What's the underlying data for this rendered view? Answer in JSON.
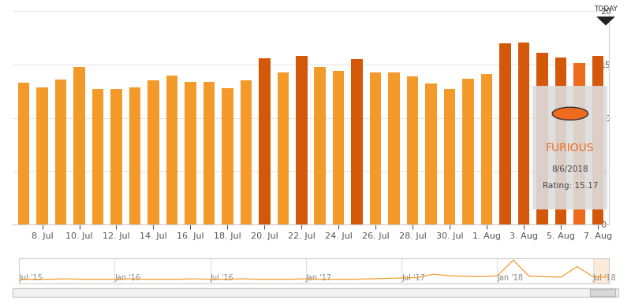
{
  "chart_data": [
    {
      "type": "bar",
      "categories": [
        null,
        "8. Jul",
        null,
        "10. Jul",
        null,
        "12. Jul",
        null,
        "14. Jul",
        null,
        "16. Jul",
        null,
        "18. Jul",
        null,
        "20. Jul",
        null,
        "22. Jul",
        null,
        "24. Jul",
        null,
        "26. Jul",
        null,
        "28. Jul",
        null,
        "30. Jul",
        null,
        "1. Aug",
        null,
        "3. Aug",
        null,
        "5. Aug",
        null,
        "7. Aug"
      ],
      "values": [
        13.3,
        12.9,
        13.6,
        14.8,
        12.75,
        12.75,
        12.9,
        13.5,
        14.0,
        13.4,
        13.4,
        12.8,
        13.5,
        15.6,
        14.25,
        15.8,
        14.8,
        14.4,
        15.5,
        14.25,
        14.25,
        13.9,
        13.25,
        12.7,
        13.7,
        14.1,
        17.0,
        17.1,
        16.1,
        15.7,
        15.17,
        15.8
      ],
      "colors": [
        "#f39a2a",
        "#f39a2a",
        "#f39a2a",
        "#f39a2a",
        "#f39a2a",
        "#f39a2a",
        "#f39a2a",
        "#f39a2a",
        "#f39a2a",
        "#f39a2a",
        "#f39a2a",
        "#f39a2a",
        "#f39a2a",
        "#d4580a",
        "#f39a2a",
        "#d4580a",
        "#f39a2a",
        "#f39a2a",
        "#d4580a",
        "#f39a2a",
        "#f39a2a",
        "#f39a2a",
        "#f39a2a",
        "#f39a2a",
        "#f39a2a",
        "#f39a2a",
        "#d4580a",
        "#d4580a",
        "#d4580a",
        "#d4580a",
        "#ee6a1c",
        "#d4580a"
      ],
      "ylim": [
        0,
        20
      ],
      "yticks": [
        0,
        5,
        10,
        15,
        20
      ],
      "grid": true,
      "today_label": "TODAY",
      "tooltip": {
        "title": "FURIOUS",
        "date": "8/6/2018",
        "label": "Rating: 15.17"
      }
    },
    {
      "type": "line",
      "categories": [
        "Jul '15",
        null,
        null,
        null,
        null,
        null,
        "Jan '16",
        null,
        null,
        null,
        null,
        null,
        "Jul '16",
        null,
        null,
        null,
        null,
        null,
        "Jan '17",
        null,
        null,
        null,
        null,
        null,
        "Jul '17",
        null,
        null,
        null,
        null,
        null,
        "Jan '18",
        null,
        null,
        null,
        null,
        null,
        "Jul '18",
        null
      ],
      "values": [
        10,
        10,
        10,
        11,
        10,
        10,
        10,
        11,
        10,
        10,
        10,
        11,
        10,
        10,
        11,
        10,
        10,
        10,
        11,
        10,
        10,
        10,
        11,
        12,
        13,
        14,
        22,
        18,
        17,
        16,
        18,
        55,
        17,
        16,
        15,
        40,
        16,
        15
      ],
      "color": "#f39a2a",
      "ylim": [
        0,
        60
      ],
      "tick_labels": "x"
    }
  ]
}
